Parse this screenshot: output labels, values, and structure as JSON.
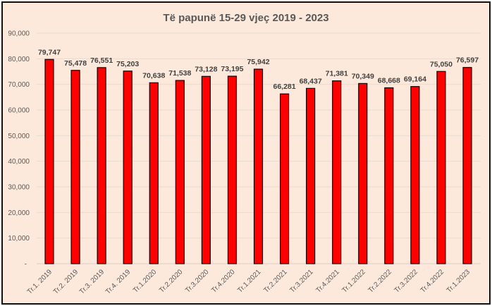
{
  "chart_data": {
    "type": "bar",
    "title": "Të papunë 15-29 vjeç 2019 - 2023",
    "xlabel": "",
    "ylabel": "",
    "ylim": [
      0,
      90000
    ],
    "yticks": [
      0,
      10000,
      20000,
      30000,
      40000,
      50000,
      60000,
      70000,
      80000,
      90000
    ],
    "ytick_labels": [
      "-",
      "10,000",
      "20,000",
      "30,000",
      "40,000",
      "50,000",
      "60,000",
      "70,000",
      "80,000",
      "90,000"
    ],
    "categories": [
      "Tr.1. 2019",
      "Tr.2. 2019",
      "Tr.3. 2019",
      "Tr.4. 2019",
      "Tr.1.2020",
      "Tr.2.2020",
      "Tr.3.2020",
      "Tr.4.2020",
      "Tr.1.2021",
      "Tr.2.2021",
      "Tr.3.2021",
      "Tr.4.2021",
      "Tr.1.2022",
      "Tr.2.2022",
      "Tr.3.2022",
      "Tr.4.2022",
      "Tr.1.2023"
    ],
    "values": [
      79747,
      75478,
      76551,
      75203,
      70638,
      71538,
      73128,
      73195,
      75942,
      66281,
      68437,
      71381,
      70349,
      68668,
      69164,
      75050,
      76597
    ],
    "data_labels": [
      "79,747",
      "75,478",
      "76,551",
      "75,203",
      "70,638",
      "71,538",
      "73,128",
      "73,195",
      "75,942",
      "66,281",
      "68,437",
      "71,381",
      "70,349",
      "68,668",
      "69,164",
      "75,050",
      "76,597"
    ],
    "grid": true,
    "legend": "none",
    "bar_color": "#ff0000",
    "bar_edge_color": "#1a0000"
  }
}
